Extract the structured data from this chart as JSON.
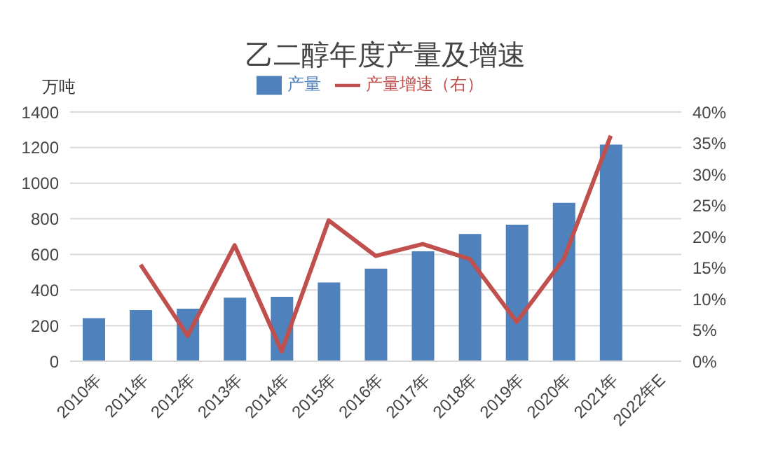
{
  "chart_data": {
    "type": "bar",
    "title": "乙二醇年度产量及增速",
    "ylabel": "万吨",
    "categories": [
      "2010年",
      "2011年",
      "2012年",
      "2013年",
      "2014年",
      "2015年",
      "2016年",
      "2017年",
      "2018年",
      "2019年",
      "2020年",
      "2021年",
      "2022年E"
    ],
    "series": [
      {
        "name": "产量",
        "color": "#4f81bd",
        "values": [
          242,
          287,
          295,
          357,
          362,
          442,
          520,
          617,
          715,
          767,
          890,
          1217,
          null
        ]
      },
      {
        "name": "产量增速（右）",
        "type": "line",
        "axis": "y2",
        "color": "#c0504d",
        "values": [
          null,
          15.5,
          4.1,
          18.6,
          1.6,
          22.6,
          16.9,
          18.8,
          16.4,
          6.3,
          16.4,
          36.2,
          null
        ]
      }
    ],
    "ylim": [
      0,
      1400
    ],
    "yticks": [
      0,
      200,
      400,
      600,
      800,
      1000,
      1200,
      1400
    ],
    "y2lim": [
      0,
      40
    ],
    "y2ticks": [
      {
        "value": 0,
        "label": "0%"
      },
      {
        "value": 5,
        "label": "5%"
      },
      {
        "value": 10,
        "label": "10%"
      },
      {
        "value": 15,
        "label": "15%"
      },
      {
        "value": 20,
        "label": "20%"
      },
      {
        "value": 25,
        "label": "25%"
      },
      {
        "value": 30,
        "label": "30%"
      },
      {
        "value": 35,
        "label": "35%"
      },
      {
        "value": 40,
        "label": "40%"
      }
    ],
    "grid": "y",
    "legend": "top",
    "marker": "none"
  }
}
